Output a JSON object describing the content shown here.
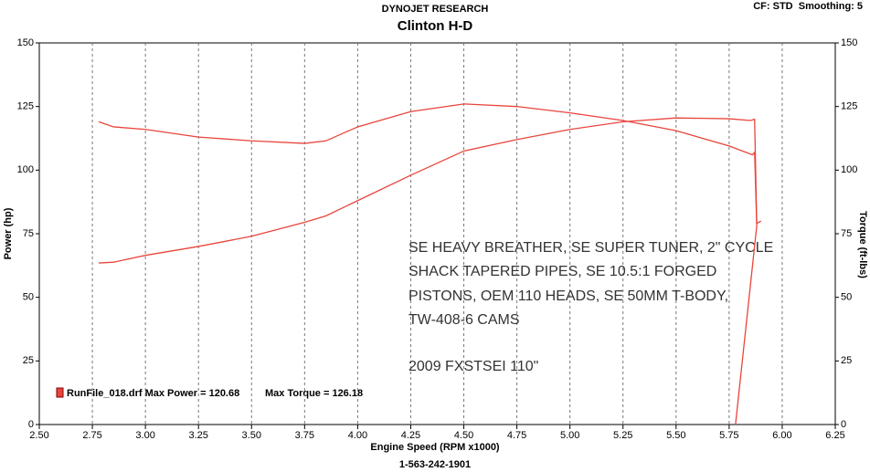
{
  "chart_data": {
    "type": "line",
    "title": "Clinton H-D",
    "header": "DYNOJET RESEARCH",
    "settings_label": "CF: STD  Smoothing: 5",
    "footer": "1-563-242-1901",
    "x_label": "Engine Speed (RPM x1000)",
    "y_label": "Power (hp)",
    "y2_label": "Torque (ft-lbs)",
    "annotations": [
      "SE HEAVY BREATHER, SE SUPER TUNER, 2\" CYCLE",
      "SHACK TAPERED PIPES, SE 10.5:1 FORGED",
      "PISTONS, OEM 110 HEADS, SE 50MM T-BODY,",
      "TW-408-6 CAMS",
      "2009 FXSTSEI 110\""
    ],
    "legend_text": [
      "RunFile_018.drf Max Power = 120.68",
      "Max Torque = 126.18"
    ],
    "xlim": [
      2.5,
      6.25
    ],
    "xticks": [
      {
        "value": 2.5,
        "label": "2.50"
      },
      2.75,
      {
        "value": 3,
        "label": "3.00"
      },
      3.25,
      {
        "value": 3.5,
        "label": "3.50"
      },
      3.75,
      {
        "value": 4,
        "label": "4.00"
      },
      4.25,
      {
        "value": 4.5,
        "label": "4.50"
      },
      4.75,
      {
        "value": 5,
        "label": "5.00"
      },
      5.25,
      {
        "value": 5.5,
        "label": "5.50"
      },
      5.75,
      {
        "value": 6,
        "label": "6.00"
      },
      6.25
    ],
    "ylim": [
      0,
      150
    ],
    "yticks": [
      0,
      25,
      50,
      75,
      100,
      125,
      150
    ],
    "y2lim": [
      0,
      150
    ],
    "y2ticks": [
      0,
      25,
      50,
      75,
      100,
      125,
      150
    ],
    "grid": true,
    "series": [
      {
        "color": "#e8453c",
        "x": [
          2.78,
          2.85,
          3.0,
          3.25,
          3.5,
          3.75,
          3.85,
          4.0,
          4.25,
          4.5,
          4.75,
          5.0,
          5.25,
          5.5,
          5.75,
          5.85,
          5.87,
          5.88,
          5.9
        ],
        "values": [
          63.5,
          63.8,
          66.5,
          70,
          74,
          79.5,
          82,
          88,
          98,
          107.5,
          112,
          116,
          119,
          120.5,
          120.2,
          119.5,
          120,
          79,
          80
        ]
      },
      {
        "color": "#e8453c",
        "axis": "y2",
        "x": [
          2.78,
          2.85,
          3.0,
          3.25,
          3.5,
          3.75,
          3.85,
          4.0,
          4.25,
          4.5,
          4.75,
          5.0,
          5.25,
          5.5,
          5.75,
          5.86,
          5.87,
          5.88,
          5.78
        ],
        "values": [
          119,
          117,
          116,
          113,
          111.5,
          110.5,
          111.5,
          117,
          123,
          126,
          125,
          122.5,
          119.5,
          115.5,
          109.5,
          106,
          107,
          78,
          0
        ]
      }
    ]
  }
}
